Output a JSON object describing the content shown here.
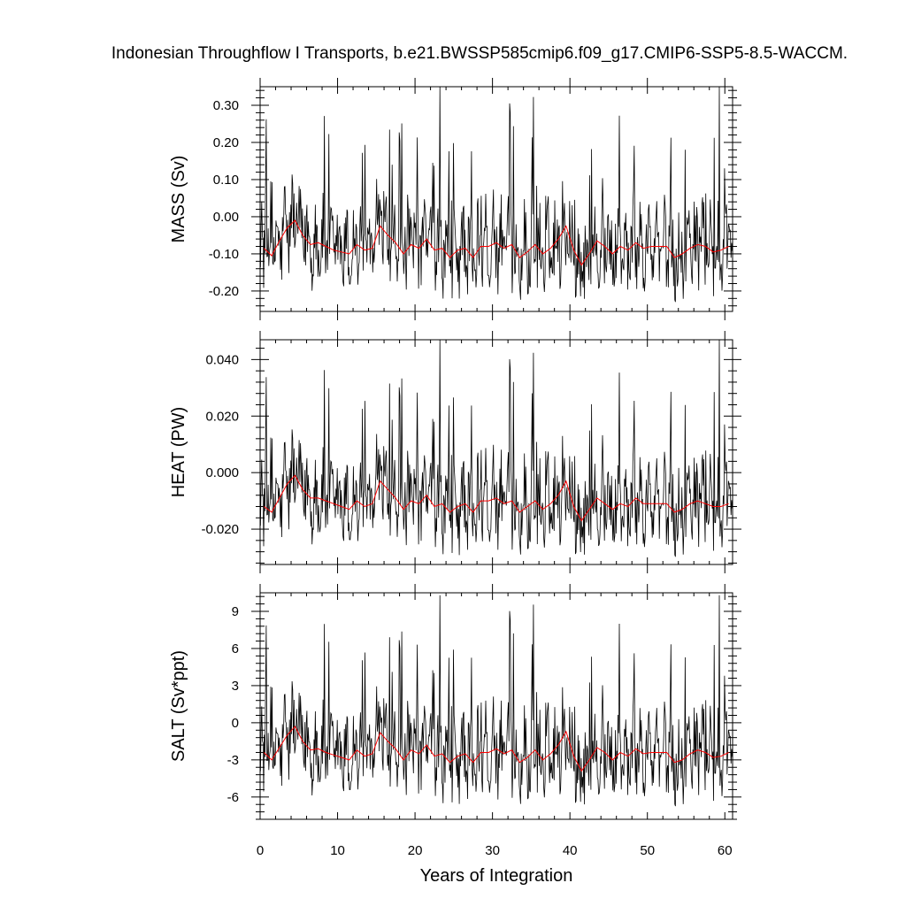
{
  "title": "Indonesian Throughflow I Transports, b.e21.BWSSP585cmip6.f09_g17.CMIP6-SSP5-8.5-WACCM.",
  "xlabel": "Years of Integration",
  "colors": {
    "monthly": "#000000",
    "annual": "#ff0000",
    "frame": "#000000"
  },
  "chart_data": [
    {
      "type": "line",
      "ylabel": "MASS (Sv)",
      "xlim": [
        0,
        61
      ],
      "ylim": [
        -0.255,
        0.35
      ],
      "xticks": [
        0,
        10,
        20,
        30,
        40,
        50,
        60
      ],
      "xtick_labels": [
        "0",
        "10",
        "20",
        "30",
        "40",
        "50",
        "60"
      ],
      "yticks": [
        0.3,
        0.2,
        0.1,
        0.0,
        -0.1,
        -0.2
      ],
      "ytick_labels": [
        "0.30",
        "0.20",
        "0.10",
        "0.00",
        "-0.10",
        "-0.20"
      ],
      "monthly_stats": {
        "mean": -0.09,
        "min": -0.25,
        "max": 0.35
      },
      "series": [
        {
          "role": "annual",
          "x": [
            0.5,
            1.5,
            2.5,
            3.5,
            4.5,
            5.5,
            6.5,
            7.5,
            8.5,
            9.5,
            10.5,
            11.5,
            12.5,
            13.5,
            14.5,
            15.5,
            16.5,
            17.5,
            18.5,
            19.5,
            20.5,
            21.5,
            22.5,
            23.5,
            24.5,
            25.5,
            26.5,
            27.5,
            28.5,
            29.5,
            30.5,
            31.5,
            32.5,
            33.5,
            34.5,
            35.5,
            36.5,
            37.5,
            38.5,
            39.5,
            40.5,
            41.5,
            42.5,
            43.5,
            44.5,
            45.5,
            46.5,
            47.5,
            48.5,
            49.5,
            50.5,
            51.5,
            52.5,
            53.5,
            54.5,
            55.5,
            56.5,
            57.5,
            58.5,
            59.5,
            60.5
          ],
          "values": [
            -0.085,
            -0.105,
            -0.065,
            -0.03,
            -0.01,
            -0.05,
            -0.075,
            -0.07,
            -0.08,
            -0.09,
            -0.095,
            -0.1,
            -0.075,
            -0.09,
            -0.085,
            -0.025,
            -0.05,
            -0.07,
            -0.1,
            -0.075,
            -0.085,
            -0.06,
            -0.09,
            -0.085,
            -0.11,
            -0.09,
            -0.085,
            -0.11,
            -0.08,
            -0.08,
            -0.07,
            -0.085,
            -0.075,
            -0.11,
            -0.095,
            -0.075,
            -0.1,
            -0.085,
            -0.06,
            -0.025,
            -0.09,
            -0.13,
            -0.1,
            -0.065,
            -0.08,
            -0.1,
            -0.08,
            -0.09,
            -0.07,
            -0.085,
            -0.08,
            -0.08,
            -0.08,
            -0.11,
            -0.1,
            -0.085,
            -0.075,
            -0.08,
            -0.095,
            -0.09,
            -0.08
          ]
        }
      ]
    },
    {
      "type": "line",
      "ylabel": "HEAT (PW)",
      "xlim": [
        0,
        61
      ],
      "ylim": [
        -0.0325,
        0.047
      ],
      "xticks": [
        0,
        10,
        20,
        30,
        40,
        50,
        60
      ],
      "xtick_labels": [
        "0",
        "10",
        "20",
        "30",
        "40",
        "50",
        "60"
      ],
      "yticks": [
        0.04,
        0.02,
        0.0,
        -0.02
      ],
      "ytick_labels": [
        "0.040",
        "0.020",
        "0.000",
        "-0.020"
      ],
      "monthly_stats": {
        "mean": -0.011,
        "min": -0.032,
        "max": 0.047
      },
      "series": [
        {
          "role": "annual",
          "x": [
            0.5,
            1.5,
            2.5,
            3.5,
            4.5,
            5.5,
            6.5,
            7.5,
            8.5,
            9.5,
            10.5,
            11.5,
            12.5,
            13.5,
            14.5,
            15.5,
            16.5,
            17.5,
            18.5,
            19.5,
            20.5,
            21.5,
            22.5,
            23.5,
            24.5,
            25.5,
            26.5,
            27.5,
            28.5,
            29.5,
            30.5,
            31.5,
            32.5,
            33.5,
            34.5,
            35.5,
            36.5,
            37.5,
            38.5,
            39.5,
            40.5,
            41.5,
            42.5,
            43.5,
            44.5,
            45.5,
            46.5,
            47.5,
            48.5,
            49.5,
            50.5,
            51.5,
            52.5,
            53.5,
            54.5,
            55.5,
            56.5,
            57.5,
            58.5,
            59.5,
            60.5
          ],
          "values": [
            -0.012,
            -0.014,
            -0.009,
            -0.004,
            -0.001,
            -0.006,
            -0.009,
            -0.009,
            -0.01,
            -0.011,
            -0.012,
            -0.013,
            -0.01,
            -0.012,
            -0.011,
            -0.003,
            -0.006,
            -0.009,
            -0.013,
            -0.01,
            -0.011,
            -0.008,
            -0.012,
            -0.011,
            -0.014,
            -0.012,
            -0.011,
            -0.014,
            -0.01,
            -0.01,
            -0.009,
            -0.011,
            -0.01,
            -0.014,
            -0.012,
            -0.01,
            -0.013,
            -0.011,
            -0.008,
            -0.003,
            -0.012,
            -0.017,
            -0.013,
            -0.009,
            -0.011,
            -0.013,
            -0.011,
            -0.012,
            -0.009,
            -0.011,
            -0.011,
            -0.011,
            -0.011,
            -0.014,
            -0.013,
            -0.011,
            -0.01,
            -0.011,
            -0.012,
            -0.012,
            -0.011
          ]
        }
      ]
    },
    {
      "type": "line",
      "ylabel": "SALT (Sv*ppt)",
      "xlim": [
        0,
        61
      ],
      "ylim": [
        -7.8,
        10.5
      ],
      "xticks": [
        0,
        10,
        20,
        30,
        40,
        50,
        60
      ],
      "xtick_labels": [
        "0",
        "10",
        "20",
        "30",
        "40",
        "50",
        "60"
      ],
      "yticks": [
        9,
        6,
        3,
        0,
        -3,
        -6
      ],
      "ytick_labels": [
        "9",
        "6",
        "3",
        "0",
        "-3",
        "-6"
      ],
      "monthly_stats": {
        "mean": -2.7,
        "min": -7.6,
        "max": 10.3
      },
      "series": [
        {
          "role": "annual",
          "x": [
            0.5,
            1.5,
            2.5,
            3.5,
            4.5,
            5.5,
            6.5,
            7.5,
            8.5,
            9.5,
            10.5,
            11.5,
            12.5,
            13.5,
            14.5,
            15.5,
            16.5,
            17.5,
            18.5,
            19.5,
            20.5,
            21.5,
            22.5,
            23.5,
            24.5,
            25.5,
            26.5,
            27.5,
            28.5,
            29.5,
            30.5,
            31.5,
            32.5,
            33.5,
            34.5,
            35.5,
            36.5,
            37.5,
            38.5,
            39.5,
            40.5,
            41.5,
            42.5,
            43.5,
            44.5,
            45.5,
            46.5,
            47.5,
            48.5,
            49.5,
            50.5,
            51.5,
            52.5,
            53.5,
            54.5,
            55.5,
            56.5,
            57.5,
            58.5,
            59.5,
            60.5
          ],
          "values": [
            -2.4,
            -3.0,
            -2.0,
            -1.0,
            -0.3,
            -1.5,
            -2.2,
            -2.1,
            -2.4,
            -2.6,
            -2.8,
            -3.0,
            -2.2,
            -2.7,
            -2.5,
            -0.8,
            -1.5,
            -2.1,
            -3.0,
            -2.2,
            -2.5,
            -1.8,
            -2.7,
            -2.5,
            -3.2,
            -2.7,
            -2.5,
            -3.2,
            -2.4,
            -2.4,
            -2.1,
            -2.5,
            -2.2,
            -3.2,
            -2.8,
            -2.2,
            -3.0,
            -2.5,
            -1.8,
            -0.7,
            -2.7,
            -3.9,
            -3.0,
            -2.0,
            -2.4,
            -3.0,
            -2.4,
            -2.7,
            -2.1,
            -2.5,
            -2.4,
            -2.4,
            -2.4,
            -3.2,
            -3.0,
            -2.5,
            -2.2,
            -2.4,
            -2.8,
            -2.7,
            -2.4
          ]
        }
      ]
    }
  ]
}
